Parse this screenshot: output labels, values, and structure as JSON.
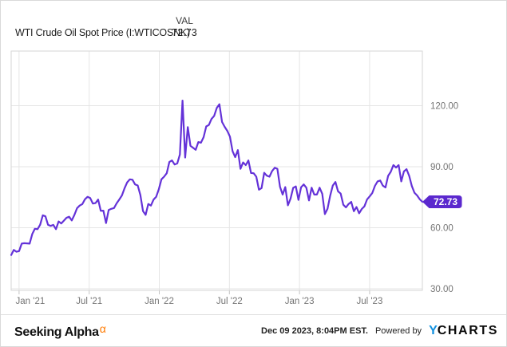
{
  "header": {
    "title": "WTI Crude Oil Spot Price (I:WTICOSNK)",
    "val_label": "VAL",
    "val_value": "72.73"
  },
  "footer": {
    "brand": "Seeking Alpha",
    "brand_alpha": "α",
    "timestamp": "Dec 09 2023, 8:04PM EST.",
    "powered_by": "Powered by",
    "ycharts_y": "Y",
    "ycharts_rest": "CHARTS"
  },
  "colors": {
    "line": "#6432d8",
    "badge": "#5b28ce",
    "gridline": "#e5e5e5",
    "plot_border": "#d6d6d6",
    "tick": "#c4c4c4",
    "axis_text": "#757575",
    "badge_text": "#ffffff"
  },
  "chart_data": {
    "type": "line",
    "title": "WTI Crude Oil Spot Price (I:WTICOSNK)",
    "series_name": "WTI Crude Oil Spot Price",
    "frequency": "weekly",
    "period": "Dec 2020 - Dec 2023",
    "last_value": 72.73,
    "last_value_label": "72.73",
    "legend_position": "none",
    "grid": true,
    "y_axis_side": "right",
    "y_ticks": [
      {
        "value": 120,
        "label": "120.00"
      },
      {
        "value": 90,
        "label": "90.00"
      },
      {
        "value": 60,
        "label": "60.00"
      },
      {
        "value": 30,
        "label": "30.00"
      }
    ],
    "x_ticks": [
      {
        "label": "Jan '21",
        "pos": 0.0192
      },
      {
        "label": "Jul '21",
        "pos": 0.1897
      },
      {
        "label": "Jan '22",
        "pos": 0.3602
      },
      {
        "label": "Jul '22",
        "pos": 0.5307
      },
      {
        "label": "Jan '23",
        "pos": 0.7012
      },
      {
        "label": "Jul '23",
        "pos": 0.8717
      }
    ],
    "values": [
      46.6,
      49.1,
      48.2,
      48.5,
      52.2,
      52.4,
      52.3,
      52.2,
      56.9,
      59.5,
      59.3,
      61.5,
      66.1,
      65.6,
      61.4,
      60.9,
      61.4,
      59.3,
      63.1,
      62.1,
      63.5,
      64.9,
      65.4,
      63.6,
      66.3,
      69.6,
      70.9,
      71.6,
      74.0,
      75.2,
      74.6,
      71.9,
      72.1,
      73.9,
      68.3,
      68.4,
      62.3,
      68.7,
      69.3,
      69.7,
      72.0,
      73.9,
      75.9,
      79.4,
      82.3,
      83.8,
      83.6,
      81.3,
      80.8,
      76.1,
      68.2,
      66.3,
      71.7,
      70.9,
      73.8,
      75.2,
      78.9,
      83.8,
      85.1,
      86.8,
      92.3,
      93.1,
      91.1,
      91.6,
      96.0,
      122.5,
      94.5,
      109.5,
      100.3,
      99.3,
      98.3,
      102.1,
      101.8,
      104.5,
      109.8,
      110.5,
      113.5,
      115.0,
      118.9,
      120.7,
      112.0,
      109.6,
      107.6,
      104.8,
      97.6,
      94.7,
      98.2,
      89.0,
      92.1,
      90.8,
      93.1,
      86.9,
      86.8,
      85.1,
      78.7,
      79.5,
      87.0,
      85.6,
      85.1,
      87.9,
      89.5,
      89.0,
      80.1,
      76.3,
      80.0,
      71.0,
      74.3,
      79.6,
      80.3,
      73.7,
      79.9,
      81.3,
      79.7,
      73.4,
      79.7,
      76.3,
      76.3,
      79.7,
      76.7,
      66.7,
      69.3,
      75.7,
      80.7,
      82.5,
      77.9,
      76.8,
      71.3,
      70.0,
      71.7,
      72.7,
      68.1,
      70.2,
      67.1,
      69.2,
      70.5,
      73.9,
      75.4,
      77.1,
      80.6,
      82.8,
      83.2,
      80.7,
      79.8,
      85.5,
      87.5,
      90.8,
      89.6,
      90.8,
      82.8,
      87.7,
      88.8,
      85.5,
      80.5,
      77.2,
      75.9,
      74.0,
      72.73
    ]
  }
}
